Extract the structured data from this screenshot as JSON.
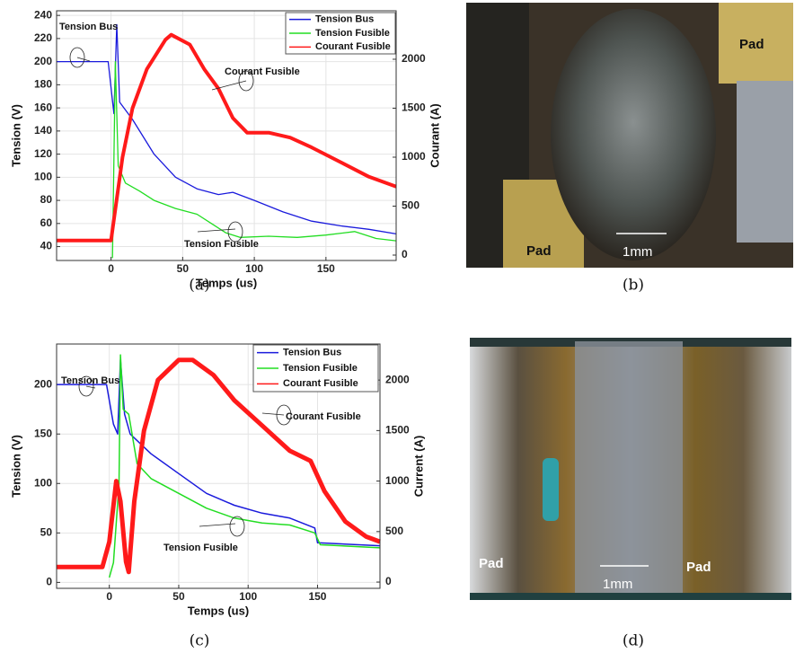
{
  "chart_data": [
    {
      "type": "line",
      "xlabel": "Temps (us)",
      "ylabel": "Tension (V)",
      "y2label": "Courant (A)",
      "xlim": [
        -38,
        199
      ],
      "xticks": [
        0,
        50,
        100,
        150
      ],
      "ylim": [
        28,
        244
      ],
      "yticks": [
        40,
        60,
        80,
        100,
        120,
        140,
        160,
        180,
        200,
        220,
        240
      ],
      "y2lim": [
        -55,
        2495
      ],
      "y2ticks": [
        0,
        500,
        1000,
        1500,
        2000
      ],
      "grid": true,
      "legend": "upper right",
      "annotations": [
        "Tension Bus",
        "Courant Fusible",
        "Tension Fusible"
      ],
      "series": [
        {
          "name": "Tension Bus",
          "color": "#1a1adc",
          "x": [
            -38,
            -2,
            2,
            4,
            6,
            15,
            30,
            45,
            60,
            75,
            85,
            100,
            120,
            140,
            160,
            180,
            199
          ],
          "values": [
            200,
            200,
            155,
            232,
            165,
            150,
            120,
            100,
            90,
            85,
            87,
            80,
            70,
            62,
            58,
            55,
            51
          ]
        },
        {
          "name": "Tension Fusible",
          "color": "#22dd22",
          "x": [
            1,
            3,
            5,
            10,
            20,
            30,
            45,
            60,
            70,
            80,
            90,
            110,
            130,
            150,
            170,
            185,
            199
          ],
          "values": [
            30,
            200,
            110,
            95,
            88,
            80,
            73,
            68,
            60,
            52,
            48,
            49,
            48,
            50,
            53,
            47,
            45
          ]
        },
        {
          "name": "Courant Fusible",
          "color": "#ff1a1a",
          "axis": "y2",
          "x": [
            -38,
            0,
            8,
            15,
            25,
            38,
            42,
            55,
            65,
            75,
            85,
            95,
            110,
            125,
            140,
            160,
            180,
            199
          ],
          "values": [
            150,
            150,
            1000,
            1500,
            1900,
            2200,
            2250,
            2150,
            1900,
            1700,
            1400,
            1250,
            1250,
            1200,
            1100,
            950,
            800,
            700
          ]
        }
      ]
    },
    {
      "type": "line",
      "xlabel": "Temps (us)",
      "ylabel": "Tension (V)",
      "y2label": "Current (A)",
      "xlim": [
        -38,
        195
      ],
      "xticks": [
        0,
        50,
        100,
        150
      ],
      "ylim": [
        -6,
        241
      ],
      "yticks": [
        0,
        50,
        100,
        150,
        200
      ],
      "y2lim": [
        -62,
        2357
      ],
      "y2ticks": [
        0,
        500,
        1000,
        1500,
        2000
      ],
      "grid": true,
      "legend": "upper right",
      "annotations": [
        "Tension Bus",
        "Courant Fusible",
        "Tension Fusible"
      ],
      "series": [
        {
          "name": "Tension Bus",
          "color": "#1a1adc",
          "x": [
            -38,
            -2,
            3,
            6,
            8,
            11,
            15,
            30,
            50,
            70,
            90,
            110,
            130,
            148,
            150,
            195
          ],
          "values": [
            200,
            200,
            160,
            150,
            225,
            170,
            150,
            130,
            110,
            90,
            78,
            70,
            65,
            55,
            40,
            37
          ]
        },
        {
          "name": "Tension Fusible",
          "color": "#22dd22",
          "x": [
            0,
            3,
            7,
            8,
            10,
            14,
            20,
            30,
            50,
            70,
            90,
            110,
            130,
            148,
            152,
            195
          ],
          "values": [
            5,
            20,
            100,
            230,
            175,
            170,
            120,
            105,
            90,
            75,
            65,
            60,
            58,
            50,
            38,
            35
          ]
        },
        {
          "name": "Courant Fusible",
          "color": "#ff1a1a",
          "axis": "y2",
          "x": [
            -38,
            -5,
            0,
            5,
            8,
            12,
            14,
            18,
            25,
            35,
            50,
            60,
            75,
            90,
            110,
            130,
            145,
            155,
            170,
            185,
            195
          ],
          "values": [
            150,
            150,
            400,
            1000,
            800,
            200,
            100,
            800,
            1500,
            2000,
            2200,
            2200,
            2050,
            1800,
            1550,
            1300,
            1200,
            900,
            600,
            450,
            400
          ]
        }
      ]
    }
  ],
  "figure": {
    "captions": [
      "(a)",
      "(b)",
      "(c)",
      "(d)"
    ],
    "photos": [
      {
        "labels": [
          "Pad",
          "Pad",
          "1mm"
        ]
      },
      {
        "labels": [
          "Pad",
          "Pad",
          "1mm"
        ]
      }
    ]
  }
}
